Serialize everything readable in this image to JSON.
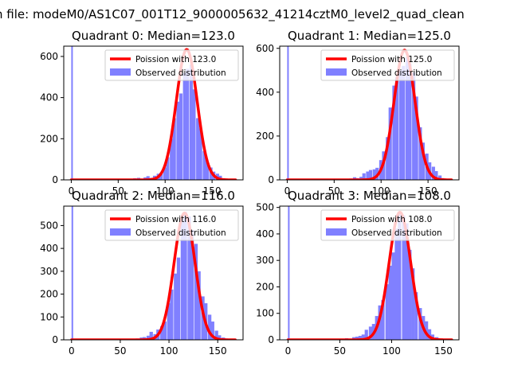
{
  "figure": {
    "suptitle": "n file: modeM0/AS1C07_001T12_9000005632_41214cztM0_level2_quad_clean"
  },
  "colors": {
    "poisson": "#ff0000",
    "observed": "#8080ff"
  },
  "chart_data": [
    {
      "type": "histogram",
      "title": "Quadrant 0: Median=123.0",
      "median": 123.0,
      "xlim": [
        -8,
        183
      ],
      "ylim": [
        0,
        650
      ],
      "xticks": [
        0,
        50,
        100,
        150
      ],
      "yticks": [
        0,
        200,
        400,
        600
      ],
      "legend_position": "upper right",
      "series": [
        {
          "name": "Poission with 123.0",
          "kind": "line",
          "lambda": 123.0,
          "x_range": [
            0,
            175
          ],
          "peak": 634
        },
        {
          "name": "Observed distribution",
          "kind": "bars",
          "bin_width": 3.5,
          "bins": [
            [
              0,
              650
            ],
            [
              66,
              8
            ],
            [
              70,
              10
            ],
            [
              73,
              6
            ],
            [
              77,
              12
            ],
            [
              80,
              18
            ],
            [
              84,
              10
            ],
            [
              87,
              20
            ],
            [
              91,
              30
            ],
            [
              94,
              35
            ],
            [
              98,
              60
            ],
            [
              101,
              110
            ],
            [
              105,
              200
            ],
            [
              108,
              300
            ],
            [
              112,
              380
            ],
            [
              115,
              420
            ],
            [
              119,
              520
            ],
            [
              122,
              540
            ],
            [
              126,
              560
            ],
            [
              129,
              440
            ],
            [
              133,
              300
            ],
            [
              136,
              250
            ],
            [
              140,
              140
            ],
            [
              143,
              90
            ],
            [
              147,
              60
            ],
            [
              150,
              40
            ],
            [
              154,
              30
            ],
            [
              157,
              20
            ],
            [
              161,
              8
            ],
            [
              164,
              5
            ],
            [
              168,
              3
            ]
          ]
        }
      ]
    },
    {
      "type": "histogram",
      "title": "Quadrant 1: Median=125.0",
      "median": 125.0,
      "xlim": [
        -8,
        183
      ],
      "ylim": [
        0,
        610
      ],
      "xticks": [
        0,
        50,
        100,
        150
      ],
      "yticks": [
        0,
        200,
        400,
        600
      ],
      "legend_position": "upper right",
      "series": [
        {
          "name": "Poission with 125.0",
          "kind": "line",
          "lambda": 125.0,
          "x_range": [
            0,
            175
          ],
          "peak": 592
        },
        {
          "name": "Observed distribution",
          "kind": "bars",
          "bin_width": 3.5,
          "bins": [
            [
              0,
              610
            ],
            [
              66,
              6
            ],
            [
              70,
              12
            ],
            [
              73,
              8
            ],
            [
              77,
              14
            ],
            [
              80,
              30
            ],
            [
              84,
              38
            ],
            [
              87,
              45
            ],
            [
              91,
              48
            ],
            [
              94,
              55
            ],
            [
              98,
              90
            ],
            [
              101,
              130
            ],
            [
              105,
              195
            ],
            [
              108,
              330
            ],
            [
              112,
              430
            ],
            [
              115,
              470
            ],
            [
              119,
              500
            ],
            [
              122,
              520
            ],
            [
              126,
              560
            ],
            [
              129,
              530
            ],
            [
              133,
              490
            ],
            [
              136,
              380
            ],
            [
              140,
              240
            ],
            [
              143,
              170
            ],
            [
              147,
              120
            ],
            [
              150,
              80
            ],
            [
              154,
              60
            ],
            [
              157,
              40
            ],
            [
              161,
              20
            ],
            [
              164,
              8
            ],
            [
              168,
              3
            ]
          ]
        }
      ]
    },
    {
      "type": "histogram",
      "title": "Quadrant 2: Median=116.0",
      "median": 116.0,
      "xlim": [
        -8,
        176
      ],
      "ylim": [
        0,
        585
      ],
      "xticks": [
        0,
        50,
        100,
        150
      ],
      "yticks": [
        0,
        100,
        200,
        300,
        400,
        500
      ],
      "legend_position": "upper right",
      "series": [
        {
          "name": "Poission with 116.0",
          "kind": "line",
          "lambda": 116.0,
          "x_range": [
            0,
            168
          ],
          "peak": 555
        },
        {
          "name": "Observed distribution",
          "kind": "bars",
          "bin_width": 3.5,
          "bins": [
            [
              0,
              585
            ],
            [
              66,
              6
            ],
            [
              70,
              10
            ],
            [
              73,
              12
            ],
            [
              77,
              18
            ],
            [
              80,
              35
            ],
            [
              84,
              25
            ],
            [
              87,
              45
            ],
            [
              91,
              60
            ],
            [
              94,
              80
            ],
            [
              98,
              160
            ],
            [
              101,
              220
            ],
            [
              105,
              290
            ],
            [
              108,
              360
            ],
            [
              112,
              530
            ],
            [
              115,
              560
            ],
            [
              119,
              540
            ],
            [
              122,
              480
            ],
            [
              126,
              420
            ],
            [
              129,
              300
            ],
            [
              133,
              190
            ],
            [
              136,
              160
            ],
            [
              140,
              110
            ],
            [
              143,
              80
            ],
            [
              147,
              40
            ],
            [
              150,
              20
            ],
            [
              154,
              10
            ],
            [
              157,
              6
            ],
            [
              161,
              3
            ],
            [
              164,
              2
            ]
          ]
        }
      ]
    },
    {
      "type": "histogram",
      "title": "Quadrant 3: Median=108.0",
      "median": 108.0,
      "xlim": [
        -8,
        165
      ],
      "ylim": [
        0,
        505
      ],
      "xticks": [
        0,
        50,
        100,
        150
      ],
      "yticks": [
        0,
        100,
        200,
        300,
        400,
        500
      ],
      "legend_position": "upper right",
      "series": [
        {
          "name": "Poission with 108.0",
          "kind": "line",
          "lambda": 108.0,
          "x_range": [
            0,
            158
          ],
          "peak": 482
        },
        {
          "name": "Observed distribution",
          "kind": "bars",
          "bin_width": 3.2,
          "bins": [
            [
              0,
              505
            ],
            [
              55,
              6
            ],
            [
              62,
              10
            ],
            [
              65,
              12
            ],
            [
              68,
              15
            ],
            [
              71,
              20
            ],
            [
              74,
              38
            ],
            [
              78,
              50
            ],
            [
              81,
              60
            ],
            [
              84,
              90
            ],
            [
              87,
              130
            ],
            [
              90,
              150
            ],
            [
              94,
              210
            ],
            [
              97,
              280
            ],
            [
              100,
              330
            ],
            [
              103,
              420
            ],
            [
              106,
              480
            ],
            [
              110,
              470
            ],
            [
              113,
              440
            ],
            [
              116,
              340
            ],
            [
              119,
              270
            ],
            [
              122,
              180
            ],
            [
              126,
              120
            ],
            [
              129,
              90
            ],
            [
              132,
              70
            ],
            [
              135,
              40
            ],
            [
              138,
              20
            ],
            [
              142,
              10
            ],
            [
              145,
              5
            ]
          ]
        }
      ]
    }
  ]
}
